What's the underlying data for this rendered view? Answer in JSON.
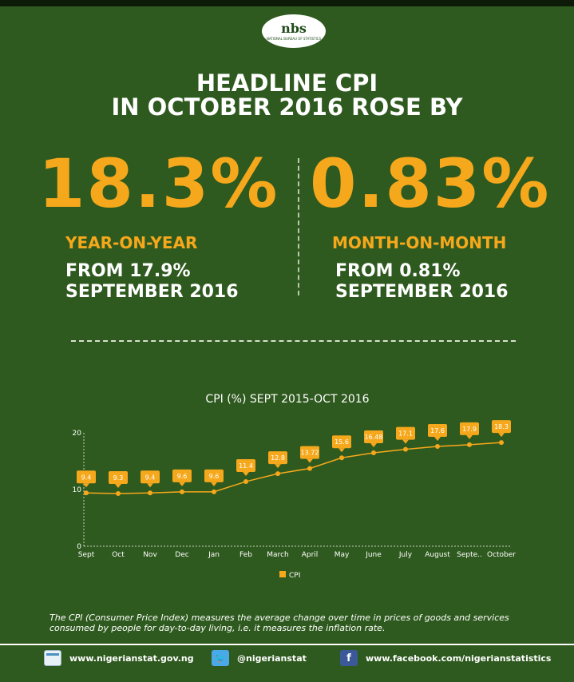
{
  "logo": {
    "mark": "nbs",
    "sub": "NATIONAL BUREAU OF STATISTICS"
  },
  "headline": {
    "line1": "HEADLINE CPI",
    "line2": "IN OCTOBER 2016 ROSE BY"
  },
  "left": {
    "value": "18.3%",
    "label": "YEAR-ON-YEAR",
    "from_line1": "FROM 17.9%",
    "from_line2": "SEPTEMBER 2016"
  },
  "right": {
    "value": "0.83%",
    "label": "MONTH-ON-MONTH",
    "from_line1": "FROM 0.81%",
    "from_line2": "SEPTEMBER 2016"
  },
  "description": "The CPI (Consumer Price Index) measures the average change over time in prices of goods and services consumed by people for day-to-day living, i.e. it measures the inflation rate.",
  "footer": {
    "website": "www.nigerianstat.gov.ng",
    "twitter": "@nigerianstat",
    "facebook": "www.facebook.com/nigerianstatistics",
    "icons": [
      "website-icon",
      "twitter-icon",
      "facebook-icon"
    ]
  },
  "colors": {
    "background": "#2f5a1f",
    "accent": "#f6a81c",
    "line": "#f6a81c",
    "text": "#ffffff"
  },
  "chart_data": {
    "type": "line",
    "title": "CPI (%) SEPT 2015-OCT 2016",
    "categories": [
      "Sept",
      "Oct",
      "Nov",
      "Dec",
      "Jan",
      "Feb",
      "March",
      "April",
      "May",
      "June",
      "July",
      "August",
      "Septe..",
      "October"
    ],
    "series": [
      {
        "name": "CPI",
        "values": [
          9.4,
          9.3,
          9.4,
          9.6,
          9.6,
          11.4,
          12.8,
          13.72,
          15.6,
          16.48,
          17.1,
          17.6,
          17.9,
          18.3
        ]
      }
    ],
    "data_labels": [
      "9.4",
      "9.3",
      "9.4",
      "9.6",
      "9.6",
      "11.4",
      "12.8",
      "13.72",
      "15.6",
      "16.48",
      "17.1",
      "17.6",
      "17.9",
      "18.3"
    ],
    "yticks": [
      "0",
      "10",
      "20"
    ],
    "ylim": [
      0,
      20
    ],
    "legend_position": "bottom-center",
    "grid": false
  }
}
